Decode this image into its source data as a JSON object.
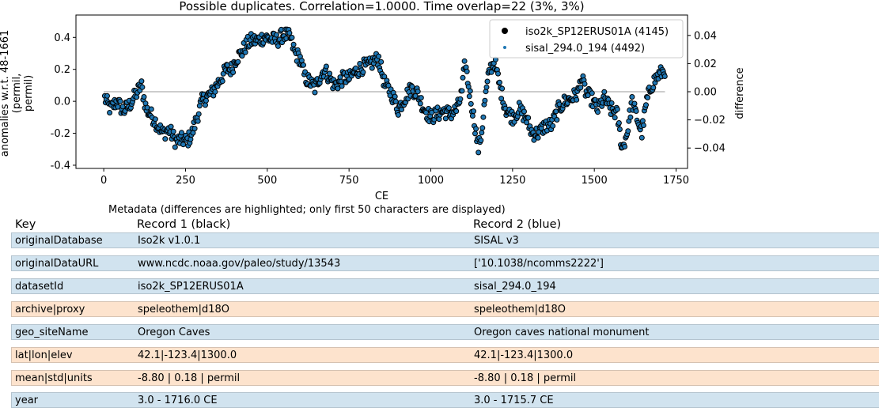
{
  "chart_data": {
    "type": "scatter",
    "title": "Possible duplicates. Correlation=1.0000. Time overlap=22 (3%, 3%)",
    "xlabel": "CE",
    "ylabel": "anomalies w.r.t. 48-1661\n(permil,\npermil)",
    "y2label": "difference",
    "xlim": [
      -85,
      1785
    ],
    "ylim": [
      -0.42,
      0.54
    ],
    "y2lim": [
      -0.0545,
      0.0545
    ],
    "xticks": [
      0,
      250,
      500,
      750,
      1000,
      1250,
      1500,
      1750
    ],
    "yticks": [
      -0.4,
      -0.2,
      0.0,
      0.2,
      0.4
    ],
    "y2ticks": [
      -0.04,
      -0.02,
      0.0,
      0.02,
      0.04
    ],
    "legend_position": "top-right",
    "difference_line": {
      "x": [
        0,
        1716
      ],
      "y": [
        0.0,
        0.0
      ],
      "color": "#bbbbbb"
    },
    "series": [
      {
        "name": "iso2k_SP12ERUS01A (4145)",
        "color": "#000000",
        "marker": "circle",
        "anchors_x": [
          3,
          20,
          40,
          60,
          80,
          100,
          115,
          130,
          150,
          165,
          180,
          200,
          220,
          240,
          255,
          270,
          285,
          300,
          315,
          330,
          345,
          360,
          375,
          390,
          405,
          420,
          435,
          450,
          470,
          490,
          510,
          530,
          550,
          570,
          585,
          600,
          615,
          630,
          645,
          660,
          675,
          690,
          705,
          720,
          735,
          750,
          765,
          780,
          795,
          810,
          825,
          840,
          860,
          880,
          900,
          920,
          940,
          960,
          980,
          1000,
          1020,
          1040,
          1060,
          1080,
          1095,
          1105,
          1115,
          1125,
          1135,
          1145,
          1155,
          1165,
          1180,
          1195,
          1210,
          1230,
          1250,
          1270,
          1290,
          1310,
          1330,
          1350,
          1370,
          1390,
          1410,
          1430,
          1450,
          1460,
          1475,
          1490,
          1510,
          1530,
          1550,
          1570,
          1585,
          1600,
          1615,
          1630,
          1645,
          1660,
          1675,
          1690,
          1716
        ],
        "anchors_y": [
          0.02,
          -0.05,
          0.0,
          -0.06,
          -0.02,
          0.05,
          0.1,
          -0.05,
          -0.1,
          -0.15,
          -0.2,
          -0.18,
          -0.25,
          -0.24,
          -0.25,
          -0.2,
          -0.1,
          0.0,
          0.03,
          0.05,
          0.1,
          0.15,
          0.2,
          0.2,
          0.27,
          0.3,
          0.35,
          0.38,
          0.38,
          0.4,
          0.39,
          0.38,
          0.42,
          0.4,
          0.3,
          0.27,
          0.15,
          0.12,
          0.08,
          0.15,
          0.2,
          0.15,
          0.1,
          0.12,
          0.15,
          0.14,
          0.18,
          0.2,
          0.22,
          0.22,
          0.25,
          0.27,
          0.1,
          0.05,
          -0.05,
          0.02,
          0.08,
          0.05,
          -0.05,
          -0.1,
          -0.08,
          -0.06,
          -0.08,
          -0.05,
          0.05,
          0.25,
          0.1,
          -0.02,
          -0.15,
          -0.3,
          -0.2,
          0.0,
          0.2,
          0.25,
          0.1,
          -0.05,
          -0.1,
          -0.05,
          -0.1,
          -0.2,
          -0.2,
          -0.15,
          -0.15,
          -0.05,
          0.0,
          0.02,
          0.05,
          0.15,
          0.05,
          0.02,
          -0.05,
          0.02,
          -0.05,
          -0.08,
          -0.3,
          -0.2,
          0.0,
          -0.1,
          -0.2,
          0.0,
          0.1,
          0.15,
          0.2
        ],
        "values_note": "Dense proxy series ~700 points; values given at representative anchor points"
      },
      {
        "name": "sisal_294.0_194 (4492)",
        "color": "#1f77b4",
        "marker": "dot"
      }
    ]
  },
  "metadata": {
    "caption": "Metadata (differences are highlighted; only first 50 characters are displayed)",
    "headers": {
      "key": "Key",
      "record1": "Record 1 (black)",
      "record2": "Record 2 (blue)"
    },
    "rows": [
      {
        "key": "originalDatabase",
        "r1": "Iso2k v1.0.1",
        "r2": "SISAL v3",
        "differs": true
      },
      {
        "key": "originalDataURL",
        "r1": "www.ncdc.noaa.gov/paleo/study/13543",
        "r2": "['10.1038/ncomms2222']",
        "differs": true
      },
      {
        "key": "datasetId",
        "r1": "iso2k_SP12ERUS01A",
        "r2": "sisal_294.0_194",
        "differs": true
      },
      {
        "key": "archive|proxy",
        "r1": "speleothem|d18O",
        "r2": "speleothem|d18O",
        "differs": false
      },
      {
        "key": "geo_siteName",
        "r1": "Oregon Caves",
        "r2": "Oregon caves national monument",
        "differs": true
      },
      {
        "key": "lat|lon|elev",
        "r1": "42.1|-123.4|1300.0",
        "r2": "42.1|-123.4|1300.0",
        "differs": false
      },
      {
        "key": "mean|std|units",
        "r1": "-8.80 | 0.18 | permil",
        "r2": "-8.80 | 0.18 | permil",
        "differs": false
      },
      {
        "key": "year",
        "r1": "3.0 - 1716.0 CE",
        "r2": "3.0 - 1715.7 CE",
        "differs": true
      }
    ]
  }
}
